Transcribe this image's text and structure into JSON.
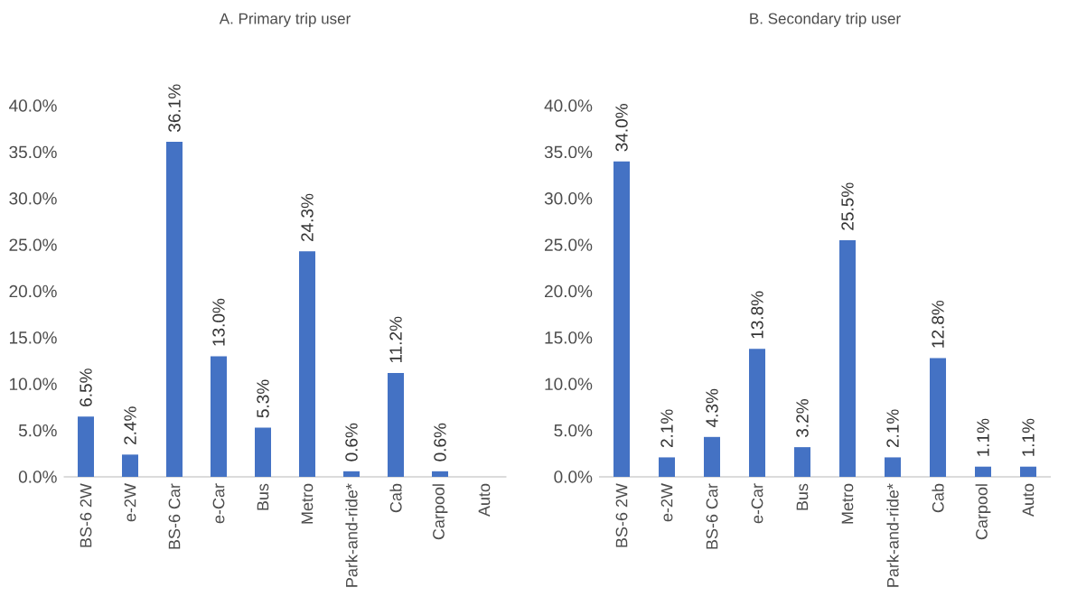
{
  "chart_data": [
    {
      "type": "bar",
      "title": "A. Primary trip user",
      "categories": [
        "BS-6 2W",
        "e-2W",
        "BS-6 Car",
        "e-Car",
        "Bus",
        "Metro",
        "Park-and-ride*",
        "Cab",
        "Carpool",
        "Auto"
      ],
      "values": [
        6.5,
        2.4,
        36.1,
        13.0,
        5.3,
        24.3,
        0.6,
        11.2,
        0.6,
        null
      ],
      "value_labels": [
        "6.5%",
        "2.4%",
        "36.1%",
        "13.0%",
        "5.3%",
        "24.3%",
        "0.6%",
        "11.2%",
        "0.6%",
        null
      ],
      "color": "#4472c4",
      "ylim": [
        0,
        40
      ],
      "yticks": [
        {
          "value": 0,
          "label": "0.0%"
        },
        {
          "value": 5,
          "label": "5.0%"
        },
        {
          "value": 10,
          "label": "10.0%"
        },
        {
          "value": 15,
          "label": "15.0%"
        },
        {
          "value": 20,
          "label": "20.0%"
        },
        {
          "value": 25,
          "label": "25.0%"
        },
        {
          "value": 30,
          "label": "30.0%"
        },
        {
          "value": 35,
          "label": "35.0%"
        },
        {
          "value": 40,
          "label": "40.0%"
        }
      ]
    },
    {
      "type": "bar",
      "title": "B. Secondary trip user",
      "categories": [
        "BS-6 2W",
        "e-2W",
        "BS-6 Car",
        "e-Car",
        "Bus",
        "Metro",
        "Park-and-ride*",
        "Cab",
        "Carpool",
        "Auto"
      ],
      "values": [
        34.0,
        2.1,
        4.3,
        13.8,
        3.2,
        25.5,
        2.1,
        12.8,
        1.1,
        1.1
      ],
      "value_labels": [
        "34.0%",
        "2.1%",
        "4.3%",
        "13.8%",
        "3.2%",
        "25.5%",
        "2.1%",
        "12.8%",
        "1.1%",
        "1.1%"
      ],
      "color": "#4472c4",
      "ylim": [
        0,
        40
      ],
      "yticks": [
        {
          "value": 0,
          "label": "0.0%"
        },
        {
          "value": 5,
          "label": "5.0%"
        },
        {
          "value": 10,
          "label": "10.0%"
        },
        {
          "value": 15,
          "label": "15.0%"
        },
        {
          "value": 20,
          "label": "20.0%"
        },
        {
          "value": 25,
          "label": "25.0%"
        },
        {
          "value": 30,
          "label": "30.0%"
        },
        {
          "value": 35,
          "label": "35.0%"
        },
        {
          "value": 40,
          "label": "40.0%"
        }
      ]
    }
  ]
}
